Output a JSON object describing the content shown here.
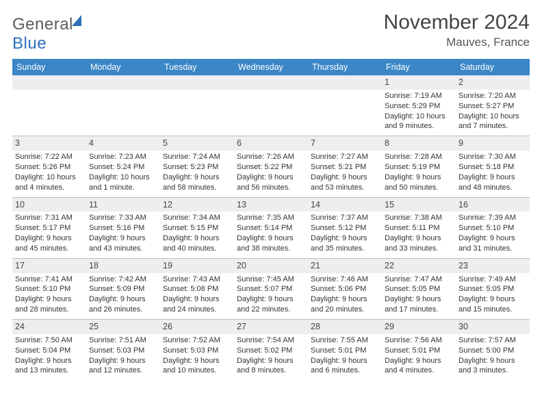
{
  "brand": {
    "part1": "General",
    "part2": "Blue"
  },
  "title": "November 2024",
  "location": "Mauves, France",
  "colors": {
    "header_bg": "#3b86c6",
    "daynum_bg": "#eceef0",
    "border": "#bfbfbf",
    "brand_gray": "#5b5b5b",
    "brand_blue": "#2d6fb8"
  },
  "weekdays": [
    "Sunday",
    "Monday",
    "Tuesday",
    "Wednesday",
    "Thursday",
    "Friday",
    "Saturday"
  ],
  "weeks": [
    [
      {
        "blank": true
      },
      {
        "blank": true
      },
      {
        "blank": true
      },
      {
        "blank": true
      },
      {
        "blank": true
      },
      {
        "n": "1",
        "sr": "7:19 AM",
        "ss": "5:29 PM",
        "dl": "10 hours and 9 minutes."
      },
      {
        "n": "2",
        "sr": "7:20 AM",
        "ss": "5:27 PM",
        "dl": "10 hours and 7 minutes."
      }
    ],
    [
      {
        "n": "3",
        "sr": "7:22 AM",
        "ss": "5:26 PM",
        "dl": "10 hours and 4 minutes."
      },
      {
        "n": "4",
        "sr": "7:23 AM",
        "ss": "5:24 PM",
        "dl": "10 hours and 1 minute."
      },
      {
        "n": "5",
        "sr": "7:24 AM",
        "ss": "5:23 PM",
        "dl": "9 hours and 58 minutes."
      },
      {
        "n": "6",
        "sr": "7:26 AM",
        "ss": "5:22 PM",
        "dl": "9 hours and 56 minutes."
      },
      {
        "n": "7",
        "sr": "7:27 AM",
        "ss": "5:21 PM",
        "dl": "9 hours and 53 minutes."
      },
      {
        "n": "8",
        "sr": "7:28 AM",
        "ss": "5:19 PM",
        "dl": "9 hours and 50 minutes."
      },
      {
        "n": "9",
        "sr": "7:30 AM",
        "ss": "5:18 PM",
        "dl": "9 hours and 48 minutes."
      }
    ],
    [
      {
        "n": "10",
        "sr": "7:31 AM",
        "ss": "5:17 PM",
        "dl": "9 hours and 45 minutes."
      },
      {
        "n": "11",
        "sr": "7:33 AM",
        "ss": "5:16 PM",
        "dl": "9 hours and 43 minutes."
      },
      {
        "n": "12",
        "sr": "7:34 AM",
        "ss": "5:15 PM",
        "dl": "9 hours and 40 minutes."
      },
      {
        "n": "13",
        "sr": "7:35 AM",
        "ss": "5:14 PM",
        "dl": "9 hours and 38 minutes."
      },
      {
        "n": "14",
        "sr": "7:37 AM",
        "ss": "5:12 PM",
        "dl": "9 hours and 35 minutes."
      },
      {
        "n": "15",
        "sr": "7:38 AM",
        "ss": "5:11 PM",
        "dl": "9 hours and 33 minutes."
      },
      {
        "n": "16",
        "sr": "7:39 AM",
        "ss": "5:10 PM",
        "dl": "9 hours and 31 minutes."
      }
    ],
    [
      {
        "n": "17",
        "sr": "7:41 AM",
        "ss": "5:10 PM",
        "dl": "9 hours and 28 minutes."
      },
      {
        "n": "18",
        "sr": "7:42 AM",
        "ss": "5:09 PM",
        "dl": "9 hours and 26 minutes."
      },
      {
        "n": "19",
        "sr": "7:43 AM",
        "ss": "5:08 PM",
        "dl": "9 hours and 24 minutes."
      },
      {
        "n": "20",
        "sr": "7:45 AM",
        "ss": "5:07 PM",
        "dl": "9 hours and 22 minutes."
      },
      {
        "n": "21",
        "sr": "7:46 AM",
        "ss": "5:06 PM",
        "dl": "9 hours and 20 minutes."
      },
      {
        "n": "22",
        "sr": "7:47 AM",
        "ss": "5:05 PM",
        "dl": "9 hours and 17 minutes."
      },
      {
        "n": "23",
        "sr": "7:49 AM",
        "ss": "5:05 PM",
        "dl": "9 hours and 15 minutes."
      }
    ],
    [
      {
        "n": "24",
        "sr": "7:50 AM",
        "ss": "5:04 PM",
        "dl": "9 hours and 13 minutes."
      },
      {
        "n": "25",
        "sr": "7:51 AM",
        "ss": "5:03 PM",
        "dl": "9 hours and 12 minutes."
      },
      {
        "n": "26",
        "sr": "7:52 AM",
        "ss": "5:03 PM",
        "dl": "9 hours and 10 minutes."
      },
      {
        "n": "27",
        "sr": "7:54 AM",
        "ss": "5:02 PM",
        "dl": "9 hours and 8 minutes."
      },
      {
        "n": "28",
        "sr": "7:55 AM",
        "ss": "5:01 PM",
        "dl": "9 hours and 6 minutes."
      },
      {
        "n": "29",
        "sr": "7:56 AM",
        "ss": "5:01 PM",
        "dl": "9 hours and 4 minutes."
      },
      {
        "n": "30",
        "sr": "7:57 AM",
        "ss": "5:00 PM",
        "dl": "9 hours and 3 minutes."
      }
    ]
  ],
  "labels": {
    "sunrise": "Sunrise: ",
    "sunset": "Sunset: ",
    "daylight": "Daylight: "
  }
}
